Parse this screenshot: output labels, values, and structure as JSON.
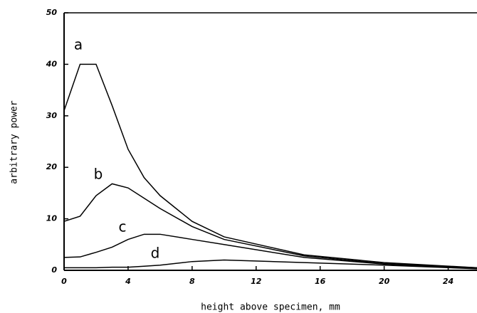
{
  "chart_data": {
    "type": "line",
    "x_label": "height above specimen, mm",
    "y_label": "arbitrary power",
    "x": [
      0,
      1,
      2,
      3,
      4,
      5,
      6,
      8,
      10,
      15,
      20,
      25.8
    ],
    "series": [
      {
        "name": "a",
        "color": "#000000",
        "values": [
          31,
          40,
          40,
          32,
          23.5,
          18,
          14.5,
          9.5,
          6.5,
          3,
          1.5,
          0.5
        ]
      },
      {
        "name": "b",
        "color": "#000000",
        "values": [
          9.5,
          10.5,
          14.5,
          16.8,
          16,
          14,
          12,
          8.5,
          6,
          2.8,
          1.3,
          0.5
        ]
      },
      {
        "name": "c",
        "color": "#000000",
        "values": [
          2.5,
          2.6,
          3.5,
          4.5,
          6,
          7,
          7,
          6,
          5,
          2.5,
          1.2,
          0.4
        ]
      },
      {
        "name": "d",
        "color": "#000000",
        "values": [
          0.5,
          0.5,
          0.5,
          0.6,
          0.6,
          0.8,
          1,
          1.7,
          2,
          1.5,
          1,
          0.3
        ]
      }
    ],
    "xlim": [
      0,
      25.8
    ],
    "xticks": [
      0,
      4,
      8,
      12,
      16,
      20,
      24
    ],
    "ylim": [
      0,
      50
    ],
    "yticks": [
      0,
      10,
      20,
      30,
      40,
      50
    ]
  }
}
